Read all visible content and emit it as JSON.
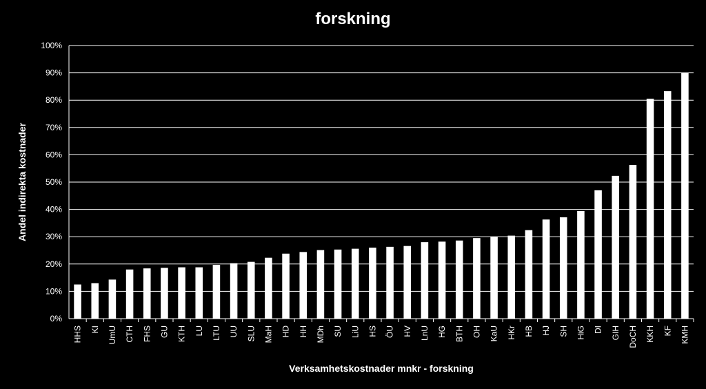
{
  "chart_data": {
    "type": "bar",
    "title": "forskning",
    "xlabel": "Verksamhetskostnader mnkr - forskning",
    "ylabel": "Andel indirekta kostnader",
    "ylim": [
      0,
      100
    ],
    "y_ticks": [
      "0%",
      "10%",
      "20%",
      "30%",
      "40%",
      "50%",
      "60%",
      "70%",
      "80%",
      "90%",
      "100%"
    ],
    "grid": true,
    "bar_color": "#ffffff",
    "background": "#000000",
    "categories": [
      "HHS",
      "KI",
      "UmU",
      "CTH",
      "FHS",
      "GU",
      "KTH",
      "LU",
      "LTU",
      "UU",
      "SLU",
      "MaH",
      "HD",
      "HH",
      "MDh",
      "SU",
      "LiU",
      "HS",
      "ÖU",
      "HV",
      "LnU",
      "HG",
      "BTH",
      "OH",
      "KaU",
      "HKr",
      "HB",
      "HJ",
      "SH",
      "HiG",
      "DI",
      "GIH",
      "DoCH",
      "KKH",
      "KF",
      "KMH"
    ],
    "values": [
      12.5,
      13,
      14.3,
      18,
      18.4,
      18.6,
      18.8,
      18.8,
      19.7,
      20.3,
      20.8,
      22.3,
      23.8,
      24.4,
      25.1,
      25.3,
      25.6,
      26,
      26.3,
      26.6,
      28,
      28.2,
      28.6,
      29.5,
      30,
      30.4,
      32.4,
      36.3,
      37.1,
      39.4,
      47,
      52.3,
      56.3,
      80.5,
      83.3,
      90
    ]
  }
}
